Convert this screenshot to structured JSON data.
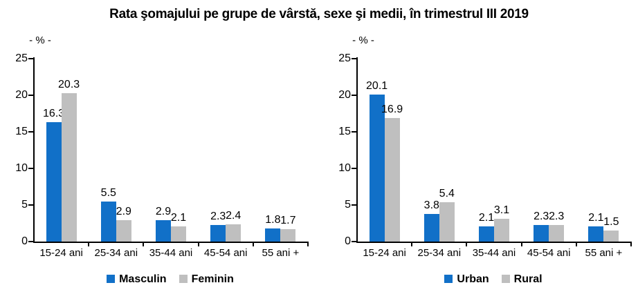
{
  "title": "Rata şomajului pe grupe de vârstă, sexe şi medii, în trimestrul III 2019",
  "colors": {
    "bar_blue": "#1170C8",
    "bar_gray": "#BFBFBF",
    "axis": "#000000",
    "text": "#000000"
  },
  "chart_data": [
    {
      "type": "bar",
      "name": "by-sex",
      "unit_label": "- % -",
      "categories": [
        "15-24 ani",
        "25-34 ani",
        "35-44 ani",
        "45-54 ani",
        "55 ani +"
      ],
      "series": [
        {
          "name": "Masculin",
          "color": "#1170C8",
          "values": [
            16.3,
            5.5,
            2.9,
            2.3,
            1.8
          ]
        },
        {
          "name": "Feminin",
          "color": "#BFBFBF",
          "values": [
            20.3,
            2.9,
            2.1,
            2.4,
            1.7
          ]
        }
      ],
      "ylim": [
        0,
        25
      ],
      "ytick_step": 5,
      "grid": false,
      "legend_position": "bottom"
    },
    {
      "type": "bar",
      "name": "by-area",
      "unit_label": "- % -",
      "categories": [
        "15-24 ani",
        "25-34 ani",
        "35-44 ani",
        "45-54 ani",
        "55 ani +"
      ],
      "series": [
        {
          "name": "Urban",
          "color": "#1170C8",
          "values": [
            20.1,
            3.8,
            2.1,
            2.3,
            2.1
          ]
        },
        {
          "name": "Rural",
          "color": "#BFBFBF",
          "values": [
            16.9,
            5.4,
            3.1,
            2.3,
            1.5
          ]
        }
      ],
      "ylim": [
        0,
        25
      ],
      "ytick_step": 5,
      "grid": false,
      "legend_position": "bottom"
    }
  ]
}
